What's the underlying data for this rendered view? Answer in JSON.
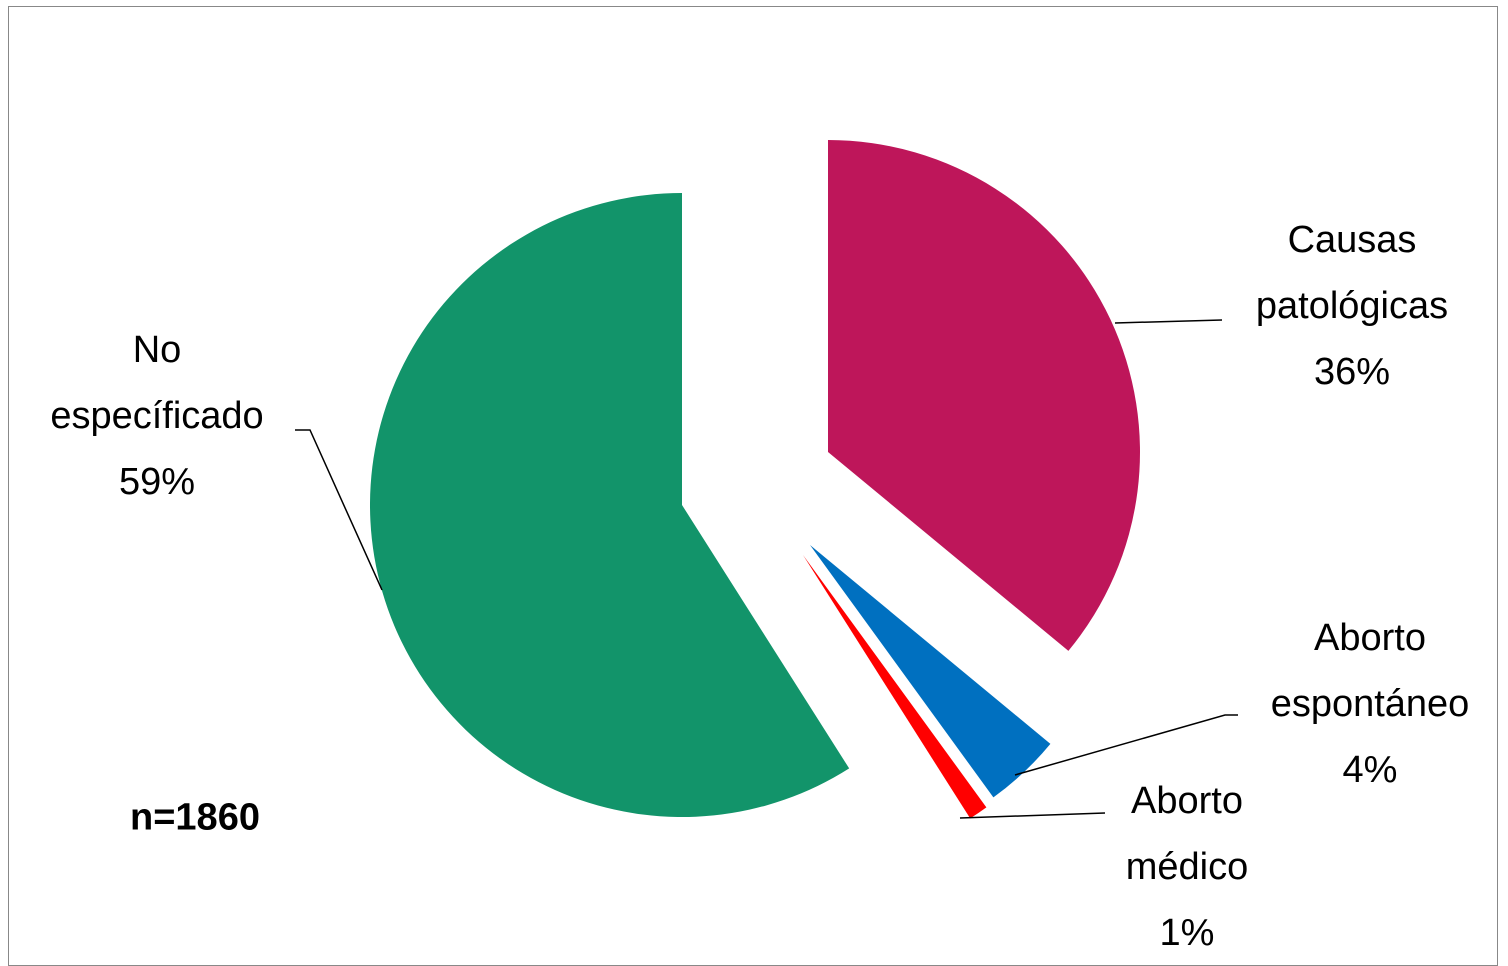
{
  "chart_data": {
    "type": "pie",
    "categories": [
      "Causas patológicas",
      "Aborto espontáneo",
      "Aborto médico",
      "No específicado"
    ],
    "values": [
      36,
      4,
      1,
      59
    ],
    "value_labels": [
      "36%",
      "4%",
      "1%",
      "59%"
    ],
    "colors": [
      "#be165a",
      "#0070c0",
      "#ff0000",
      "#12946a"
    ],
    "annotation": "n=1860"
  }
}
